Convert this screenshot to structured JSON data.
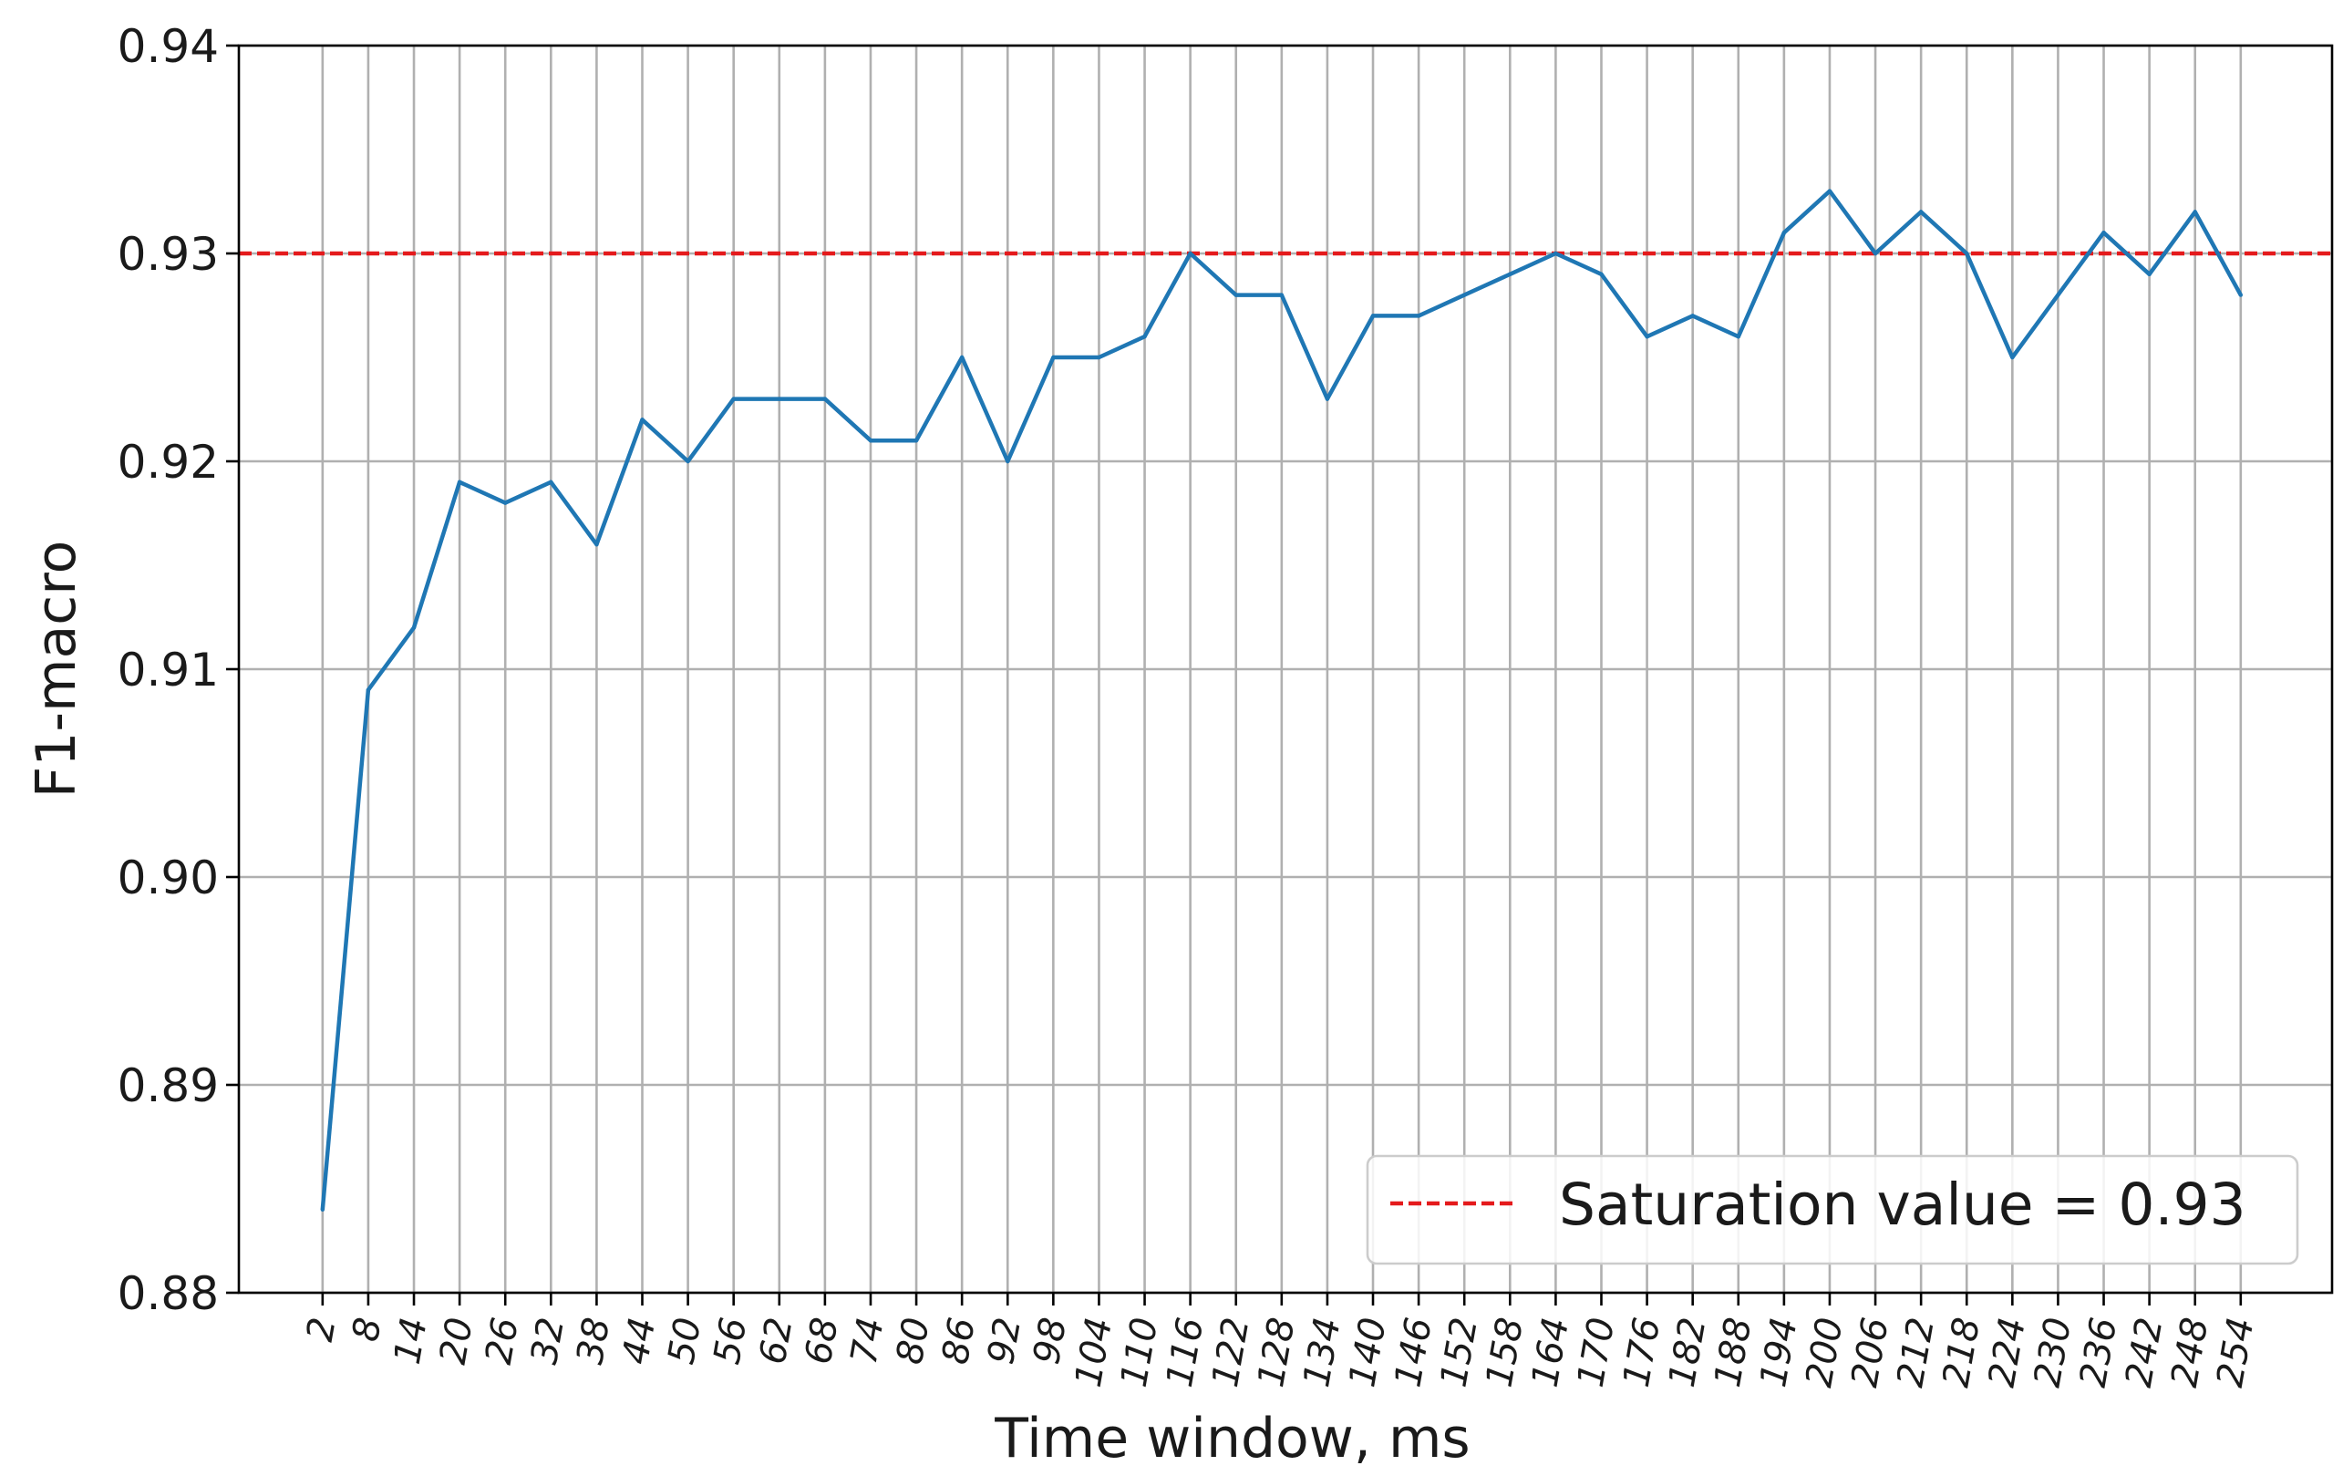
{
  "chart_data": {
    "type": "line",
    "xlabel": "Time window, ms",
    "ylabel": "F1-macro",
    "ylim": [
      0.88,
      0.94
    ],
    "y_ticks": [
      "0.88",
      "0.89",
      "0.90",
      "0.91",
      "0.92",
      "0.93",
      "0.94"
    ],
    "y_tick_values": [
      0.88,
      0.89,
      0.9,
      0.91,
      0.92,
      0.93,
      0.94
    ],
    "x": [
      2,
      8,
      14,
      20,
      26,
      32,
      38,
      44,
      50,
      56,
      62,
      68,
      74,
      80,
      86,
      92,
      98,
      104,
      110,
      116,
      122,
      128,
      134,
      140,
      146,
      152,
      158,
      164,
      170,
      176,
      182,
      188,
      194,
      200,
      206,
      212,
      218,
      224,
      230,
      236,
      242,
      248,
      254
    ],
    "x_tick_labels": [
      "2",
      "8",
      "14",
      "20",
      "26",
      "32",
      "38",
      "44",
      "50",
      "56",
      "62",
      "68",
      "74",
      "80",
      "86",
      "92",
      "98",
      "104",
      "110",
      "116",
      "122",
      "128",
      "134",
      "140",
      "146",
      "152",
      "158",
      "164",
      "170",
      "176",
      "182",
      "188",
      "194",
      "200",
      "206",
      "212",
      "218",
      "224",
      "230",
      "236",
      "242",
      "248",
      "254"
    ],
    "xlim": [
      -9,
      266
    ],
    "series": [
      {
        "values": [
          0.884,
          0.909,
          0.912,
          0.919,
          0.918,
          0.919,
          0.916,
          0.922,
          0.92,
          0.923,
          0.923,
          0.923,
          0.921,
          0.921,
          0.925,
          0.92,
          0.925,
          0.925,
          0.926,
          0.93,
          0.928,
          0.928,
          0.923,
          0.927,
          0.927,
          0.928,
          0.929,
          0.93,
          0.929,
          0.926,
          0.927,
          0.926,
          0.931,
          0.933,
          0.93,
          0.932,
          0.93,
          0.925,
          0.928,
          0.931,
          0.929,
          0.932,
          0.928
        ],
        "color": "#1f77b4"
      }
    ],
    "reference_line": {
      "value": 0.93,
      "label": "Saturation value = 0.93",
      "color": "#e41a1c",
      "style": "dashed"
    },
    "grid": true,
    "legend_position": "lower-right"
  }
}
